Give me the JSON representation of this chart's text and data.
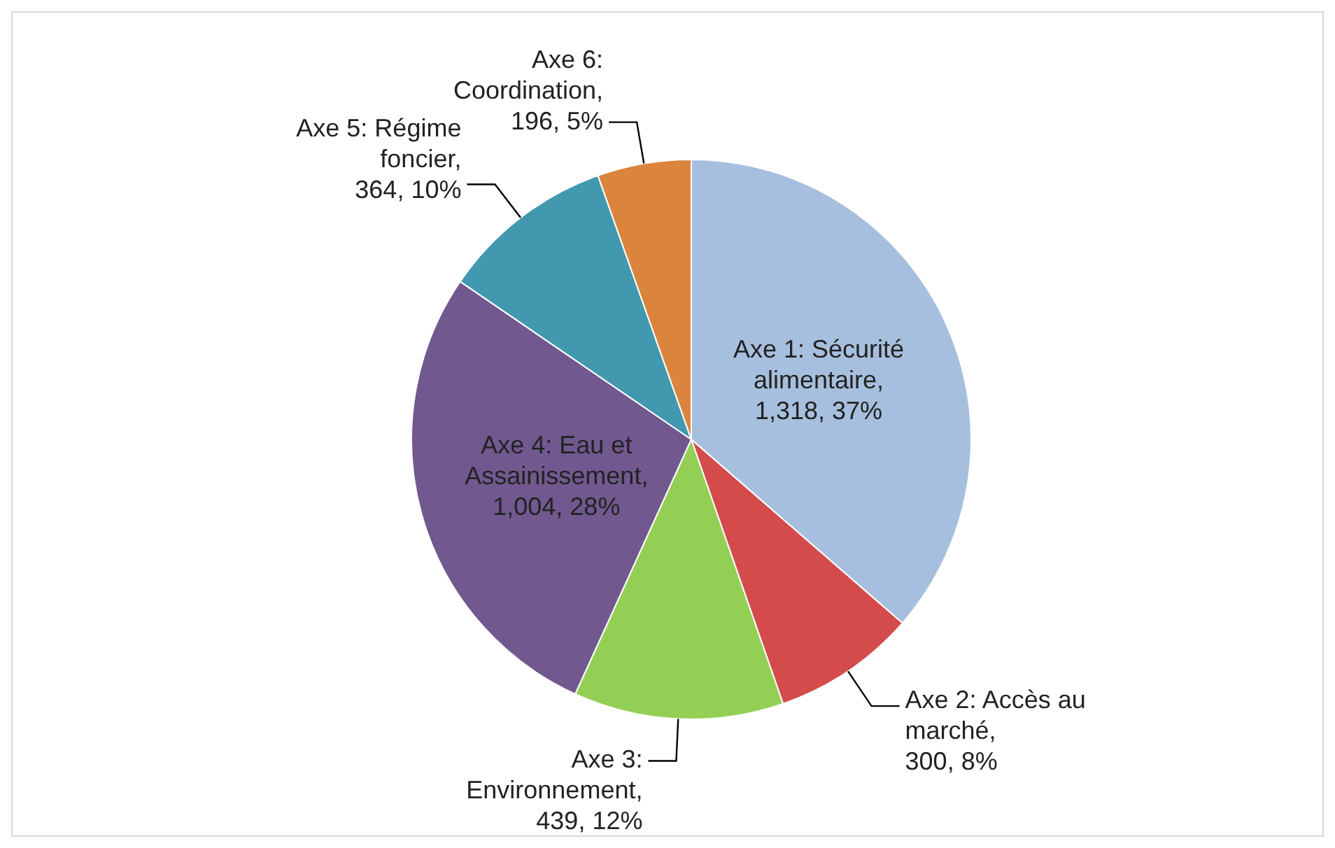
{
  "chart_data": {
    "type": "pie",
    "categories": [
      "Axe 1: Sécurité alimentaire",
      "Axe 2: Accès au marché",
      "Axe 3: Environnement",
      "Axe 4: Eau et Assainissement",
      "Axe 5: Régime foncier",
      "Axe 6: Coordination"
    ],
    "values": [
      1318,
      300,
      439,
      1004,
      364,
      196
    ],
    "value_labels": [
      ", 1,318, 37%",
      ", 300, 8%",
      ", 439, 12%",
      ", 1,004, 28%",
      ", 364, 10%",
      ", 196, 5%"
    ],
    "colors": [
      "#a7bfde",
      "#d34b4b",
      "#93cf55",
      "#71588f",
      "#4198af",
      "#db843d"
    ],
    "legend": false
  }
}
